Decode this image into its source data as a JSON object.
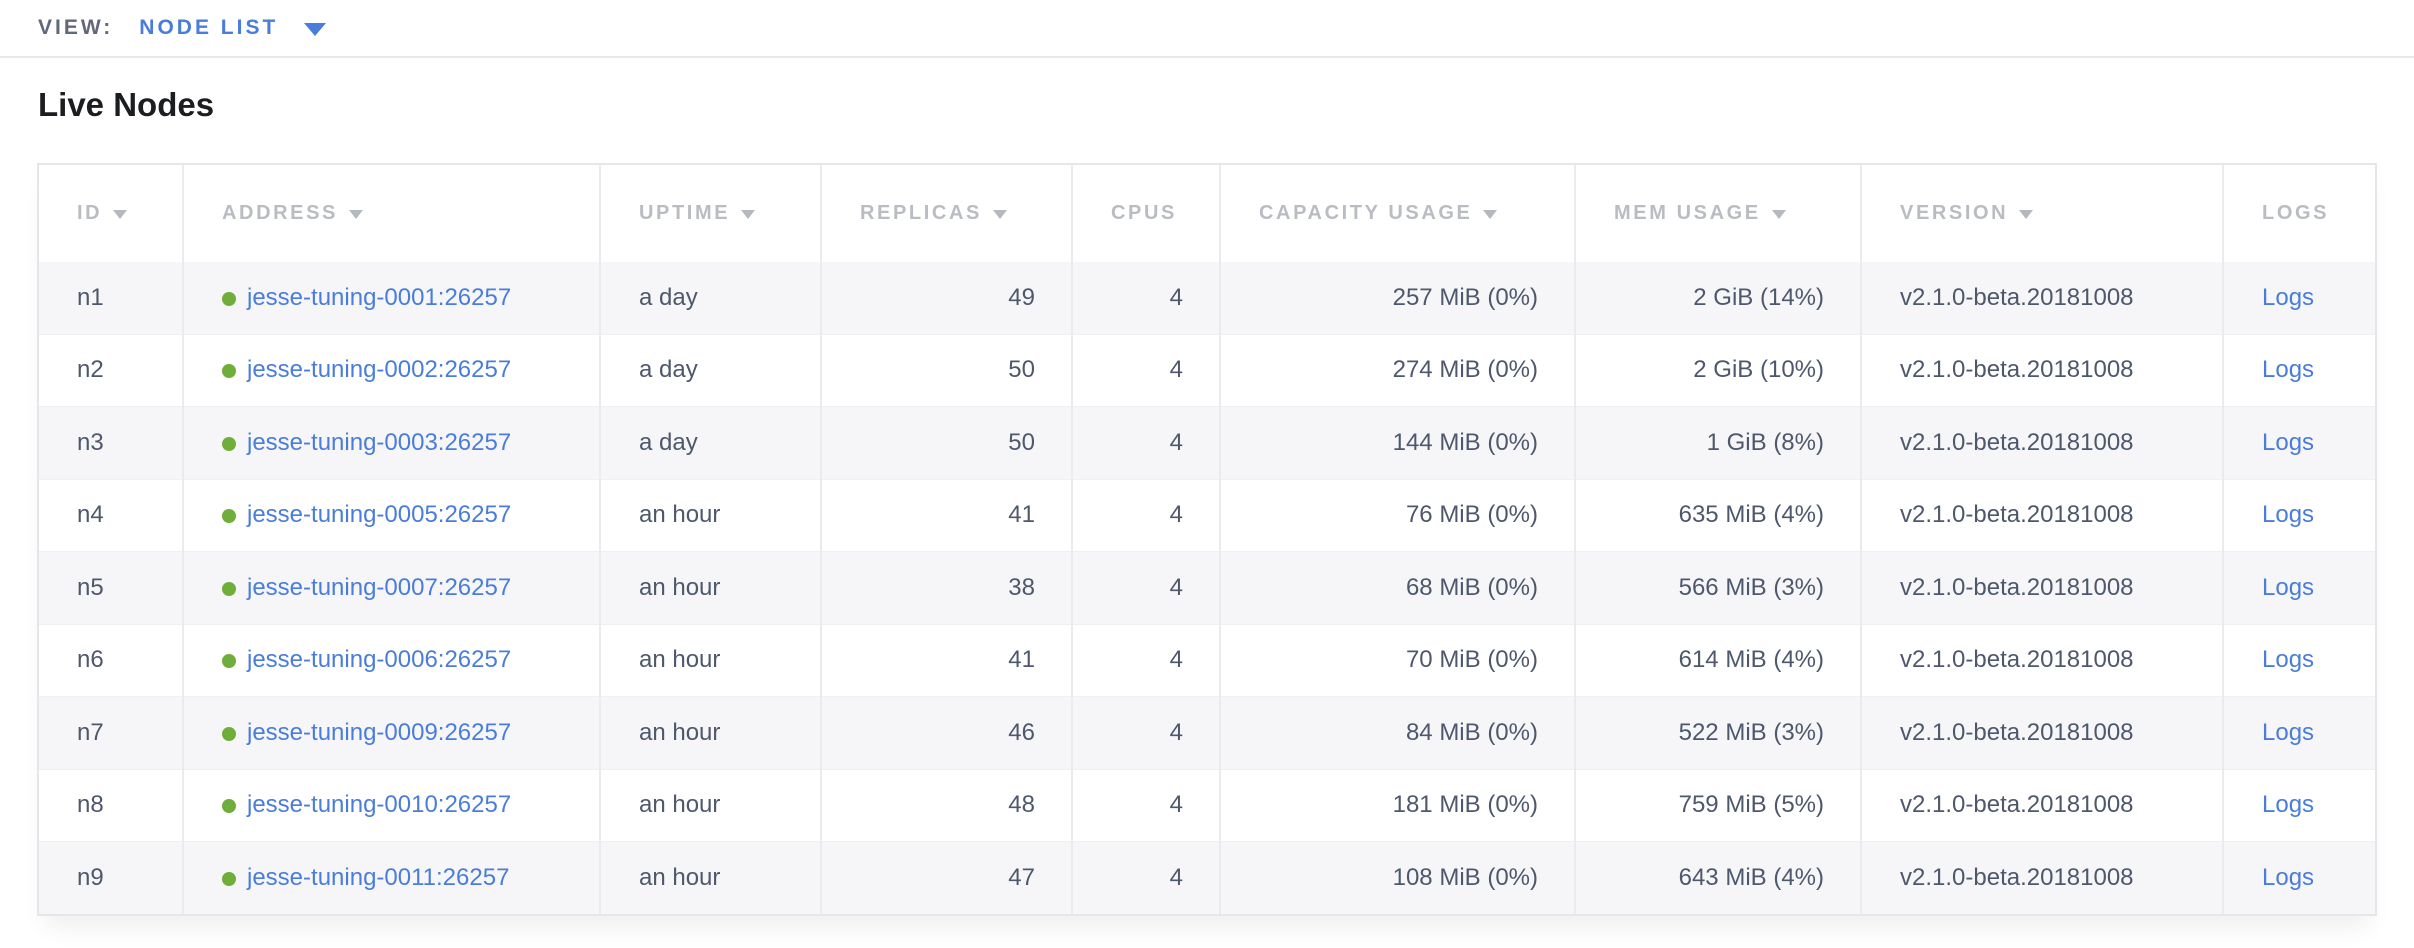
{
  "view_bar": {
    "label": "VIEW:",
    "selected": "NODE LIST"
  },
  "page": {
    "title": "Live Nodes"
  },
  "colors": {
    "link_blue": "#4a7ddb",
    "health_green": "#6fae3b",
    "header_gray": "#b9bcc2",
    "text_slate": "#4e586c",
    "title_black": "#1b1d21",
    "row_stripe": "#f6f6f8",
    "border": "#e4e6ea"
  },
  "table": {
    "columns": [
      {
        "key": "id",
        "label": "ID",
        "sortable": true,
        "align": "left"
      },
      {
        "key": "address",
        "label": "ADDRESS",
        "sortable": true,
        "align": "left"
      },
      {
        "key": "uptime",
        "label": "UPTIME",
        "sortable": true,
        "align": "left"
      },
      {
        "key": "replicas",
        "label": "REPLICAS",
        "sortable": true,
        "align": "right"
      },
      {
        "key": "cpus",
        "label": "CPUS",
        "sortable": false,
        "align": "right"
      },
      {
        "key": "capacity",
        "label": "CAPACITY USAGE",
        "sortable": true,
        "align": "right"
      },
      {
        "key": "mem",
        "label": "MEM USAGE",
        "sortable": true,
        "align": "right"
      },
      {
        "key": "version",
        "label": "VERSION",
        "sortable": true,
        "align": "left"
      },
      {
        "key": "logs",
        "label": "LOGS",
        "sortable": false,
        "align": "left"
      }
    ],
    "rows": [
      {
        "id": "n1",
        "status": "healthy",
        "address": "jesse-tuning-0001:26257",
        "uptime": "a day",
        "replicas": "49",
        "cpus": "4",
        "capacity": "257 MiB (0%)",
        "mem": "2 GiB (14%)",
        "version": "v2.1.0-beta.20181008",
        "logs": "Logs"
      },
      {
        "id": "n2",
        "status": "healthy",
        "address": "jesse-tuning-0002:26257",
        "uptime": "a day",
        "replicas": "50",
        "cpus": "4",
        "capacity": "274 MiB (0%)",
        "mem": "2 GiB (10%)",
        "version": "v2.1.0-beta.20181008",
        "logs": "Logs"
      },
      {
        "id": "n3",
        "status": "healthy",
        "address": "jesse-tuning-0003:26257",
        "uptime": "a day",
        "replicas": "50",
        "cpus": "4",
        "capacity": "144 MiB (0%)",
        "mem": "1 GiB (8%)",
        "version": "v2.1.0-beta.20181008",
        "logs": "Logs"
      },
      {
        "id": "n4",
        "status": "healthy",
        "address": "jesse-tuning-0005:26257",
        "uptime": "an hour",
        "replicas": "41",
        "cpus": "4",
        "capacity": "76 MiB (0%)",
        "mem": "635 MiB (4%)",
        "version": "v2.1.0-beta.20181008",
        "logs": "Logs"
      },
      {
        "id": "n5",
        "status": "healthy",
        "address": "jesse-tuning-0007:26257",
        "uptime": "an hour",
        "replicas": "38",
        "cpus": "4",
        "capacity": "68 MiB (0%)",
        "mem": "566 MiB (3%)",
        "version": "v2.1.0-beta.20181008",
        "logs": "Logs"
      },
      {
        "id": "n6",
        "status": "healthy",
        "address": "jesse-tuning-0006:26257",
        "uptime": "an hour",
        "replicas": "41",
        "cpus": "4",
        "capacity": "70 MiB (0%)",
        "mem": "614 MiB (4%)",
        "version": "v2.1.0-beta.20181008",
        "logs": "Logs"
      },
      {
        "id": "n7",
        "status": "healthy",
        "address": "jesse-tuning-0009:26257",
        "uptime": "an hour",
        "replicas": "46",
        "cpus": "4",
        "capacity": "84 MiB (0%)",
        "mem": "522 MiB (3%)",
        "version": "v2.1.0-beta.20181008",
        "logs": "Logs"
      },
      {
        "id": "n8",
        "status": "healthy",
        "address": "jesse-tuning-0010:26257",
        "uptime": "an hour",
        "replicas": "48",
        "cpus": "4",
        "capacity": "181 MiB (0%)",
        "mem": "759 MiB (5%)",
        "version": "v2.1.0-beta.20181008",
        "logs": "Logs"
      },
      {
        "id": "n9",
        "status": "healthy",
        "address": "jesse-tuning-0011:26257",
        "uptime": "an hour",
        "replicas": "47",
        "cpus": "4",
        "capacity": "108 MiB (0%)",
        "mem": "643 MiB (4%)",
        "version": "v2.1.0-beta.20181008",
        "logs": "Logs"
      }
    ]
  }
}
